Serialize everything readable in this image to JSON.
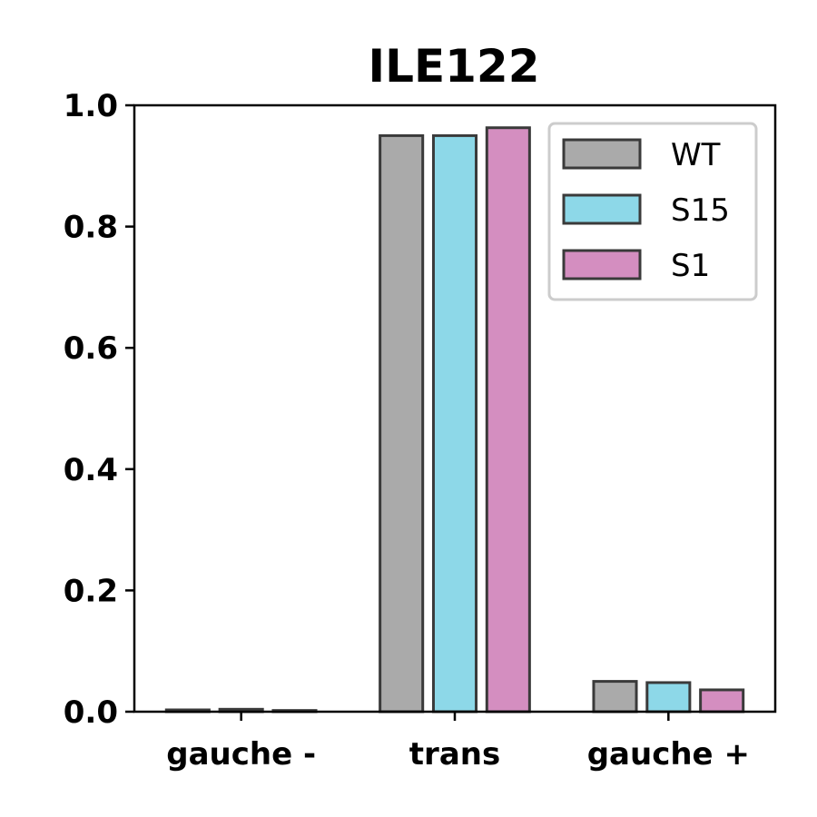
{
  "chart_data": {
    "type": "bar",
    "title": "ILE122",
    "xlabel": "",
    "ylabel": "",
    "categories": [
      "gauche -",
      "trans",
      "gauche +"
    ],
    "series": [
      {
        "name": "WT",
        "color": "#aaaaaa",
        "values": [
          0.003,
          0.95,
          0.05
        ]
      },
      {
        "name": "S15",
        "color": "#8dd8e8",
        "values": [
          0.004,
          0.95,
          0.048
        ]
      },
      {
        "name": "S1",
        "color": "#d48ec0",
        "values": [
          0.002,
          0.963,
          0.036
        ]
      }
    ],
    "ylim": [
      0,
      1.0
    ],
    "yticks": [
      "0.0",
      "0.2",
      "0.4",
      "0.6",
      "0.8",
      "1.0"
    ],
    "grid": false,
    "legend_position": "top-right"
  }
}
